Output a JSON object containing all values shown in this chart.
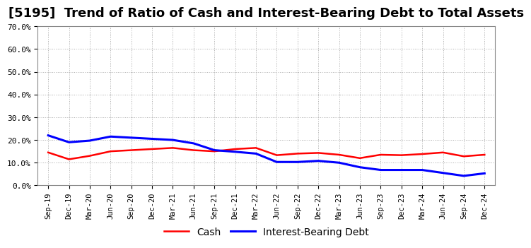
{
  "title": "[5195]  Trend of Ratio of Cash and Interest-Bearing Debt to Total Assets",
  "x_labels": [
    "Sep-19",
    "Dec-19",
    "Mar-20",
    "Jun-20",
    "Sep-20",
    "Dec-20",
    "Mar-21",
    "Jun-21",
    "Sep-21",
    "Dec-21",
    "Mar-22",
    "Jun-22",
    "Sep-22",
    "Dec-22",
    "Mar-23",
    "Jun-23",
    "Sep-23",
    "Dec-23",
    "Mar-24",
    "Jun-24",
    "Sep-24",
    "Dec-24"
  ],
  "cash": [
    0.145,
    0.115,
    0.13,
    0.15,
    0.155,
    0.16,
    0.165,
    0.155,
    0.15,
    0.16,
    0.165,
    0.133,
    0.14,
    0.143,
    0.135,
    0.12,
    0.135,
    0.133,
    0.138,
    0.145,
    0.128,
    0.135
  ],
  "interest_bearing_debt": [
    0.22,
    0.19,
    0.197,
    0.215,
    0.21,
    0.205,
    0.2,
    0.185,
    0.155,
    0.148,
    0.14,
    0.103,
    0.103,
    0.108,
    0.1,
    0.08,
    0.068,
    0.068,
    0.068,
    0.055,
    0.042,
    0.053
  ],
  "cash_color": "#FF0000",
  "debt_color": "#0000FF",
  "ylim": [
    0.0,
    0.7
  ],
  "yticks": [
    0.0,
    0.1,
    0.2,
    0.3,
    0.4,
    0.5,
    0.6,
    0.7
  ],
  "background_color": "#FFFFFF",
  "grid_color": "#AAAAAA",
  "title_fontsize": 13,
  "legend_cash": "Cash",
  "legend_debt": "Interest-Bearing Debt"
}
